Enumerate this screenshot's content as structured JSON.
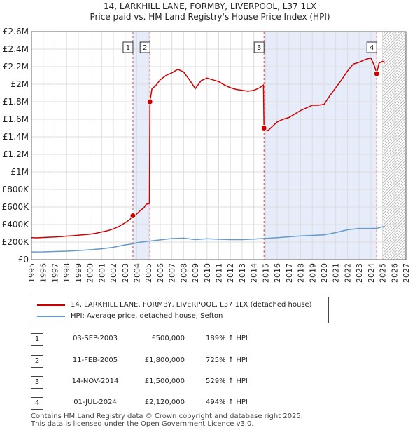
{
  "chart_data": {
    "type": "line",
    "title": "14, LARKHILL LANE, FORMBY, LIVERPOOL, L37 1LX",
    "subtitle": "Price paid vs. HM Land Registry's House Price Index (HPI)",
    "xlim": [
      1995,
      2027
    ],
    "ylim": [
      0,
      2600000
    ],
    "x_ticks": [
      1995,
      1996,
      1997,
      1998,
      1999,
      2000,
      2001,
      2002,
      2003,
      2004,
      2005,
      2006,
      2007,
      2008,
      2009,
      2010,
      2011,
      2012,
      2013,
      2014,
      2015,
      2016,
      2017,
      2018,
      2019,
      2020,
      2021,
      2022,
      2023,
      2024,
      2025,
      2026,
      2027
    ],
    "y_ticks": [
      {
        "value": 0,
        "label": "£0"
      },
      {
        "value": 200000,
        "label": "£200K"
      },
      {
        "value": 400000,
        "label": "£400K"
      },
      {
        "value": 600000,
        "label": "£600K"
      },
      {
        "value": 800000,
        "label": "£800K"
      },
      {
        "value": 1000000,
        "label": "£1M"
      },
      {
        "value": 1200000,
        "label": "£1.2M"
      },
      {
        "value": 1400000,
        "label": "£1.4M"
      },
      {
        "value": 1600000,
        "label": "£1.6M"
      },
      {
        "value": 1800000,
        "label": "£1.8M"
      },
      {
        "value": 2000000,
        "label": "£2M"
      },
      {
        "value": 2200000,
        "label": "£2.2M"
      },
      {
        "value": 2400000,
        "label": "£2.4M"
      },
      {
        "value": 2600000,
        "label": "£2.6M"
      }
    ],
    "grid": true,
    "forecast_start": 2025.0,
    "shaded_periods": [
      {
        "from": 2003.67,
        "to": 2005.12
      },
      {
        "from": 2014.87,
        "to": 2024.5
      }
    ],
    "series": [
      {
        "name": "14, LARKHILL LANE, FORMBY, LIVERPOOL, L37 1LX (detached house)",
        "color": "#cc0000",
        "points": [
          [
            1995.0,
            250000
          ],
          [
            1995.5,
            248000
          ],
          [
            1996.0,
            252000
          ],
          [
            1996.5,
            255000
          ],
          [
            1997.0,
            258000
          ],
          [
            1997.5,
            262000
          ],
          [
            1998.0,
            268000
          ],
          [
            1998.5,
            272000
          ],
          [
            1999.0,
            278000
          ],
          [
            1999.5,
            284000
          ],
          [
            2000.0,
            290000
          ],
          [
            2000.5,
            300000
          ],
          [
            2001.0,
            315000
          ],
          [
            2001.5,
            330000
          ],
          [
            2002.0,
            350000
          ],
          [
            2002.5,
            380000
          ],
          [
            2003.0,
            420000
          ],
          [
            2003.4,
            455000
          ],
          [
            2003.67,
            500000
          ],
          [
            2004.0,
            520000
          ],
          [
            2004.3,
            560000
          ],
          [
            2004.6,
            590000
          ],
          [
            2004.8,
            630000
          ],
          [
            2005.08,
            640000
          ],
          [
            2005.12,
            1800000
          ],
          [
            2005.3,
            1950000
          ],
          [
            2005.6,
            1980000
          ],
          [
            2006.0,
            2050000
          ],
          [
            2006.5,
            2100000
          ],
          [
            2007.0,
            2130000
          ],
          [
            2007.5,
            2170000
          ],
          [
            2008.0,
            2140000
          ],
          [
            2008.5,
            2050000
          ],
          [
            2009.0,
            1950000
          ],
          [
            2009.5,
            2040000
          ],
          [
            2010.0,
            2070000
          ],
          [
            2010.5,
            2050000
          ],
          [
            2011.0,
            2030000
          ],
          [
            2011.5,
            1990000
          ],
          [
            2012.0,
            1960000
          ],
          [
            2012.5,
            1940000
          ],
          [
            2013.0,
            1930000
          ],
          [
            2013.5,
            1920000
          ],
          [
            2014.0,
            1930000
          ],
          [
            2014.5,
            1960000
          ],
          [
            2014.82,
            1990000
          ],
          [
            2014.87,
            1500000
          ],
          [
            2015.2,
            1470000
          ],
          [
            2015.6,
            1520000
          ],
          [
            2016.0,
            1570000
          ],
          [
            2016.5,
            1600000
          ],
          [
            2017.0,
            1620000
          ],
          [
            2017.5,
            1660000
          ],
          [
            2018.0,
            1700000
          ],
          [
            2018.5,
            1730000
          ],
          [
            2019.0,
            1760000
          ],
          [
            2019.5,
            1760000
          ],
          [
            2020.0,
            1770000
          ],
          [
            2020.5,
            1870000
          ],
          [
            2021.0,
            1960000
          ],
          [
            2021.5,
            2050000
          ],
          [
            2022.0,
            2150000
          ],
          [
            2022.5,
            2230000
          ],
          [
            2023.0,
            2250000
          ],
          [
            2023.5,
            2280000
          ],
          [
            2024.0,
            2300000
          ],
          [
            2024.3,
            2210000
          ],
          [
            2024.5,
            2120000
          ],
          [
            2024.7,
            2240000
          ],
          [
            2025.0,
            2260000
          ],
          [
            2025.2,
            2250000
          ]
        ]
      },
      {
        "name": "HPI: Average price, detached house, Sefton",
        "color": "#6699cc",
        "points": [
          [
            1995.0,
            87000
          ],
          [
            1996.0,
            88000
          ],
          [
            1997.0,
            92000
          ],
          [
            1998.0,
            96000
          ],
          [
            1999.0,
            103000
          ],
          [
            2000.0,
            112000
          ],
          [
            2001.0,
            123000
          ],
          [
            2002.0,
            140000
          ],
          [
            2003.0,
            168000
          ],
          [
            2003.67,
            180000
          ],
          [
            2004.0,
            193000
          ],
          [
            2005.0,
            210000
          ],
          [
            2006.0,
            225000
          ],
          [
            2007.0,
            240000
          ],
          [
            2008.0,
            245000
          ],
          [
            2009.0,
            228000
          ],
          [
            2010.0,
            238000
          ],
          [
            2011.0,
            232000
          ],
          [
            2012.0,
            228000
          ],
          [
            2013.0,
            228000
          ],
          [
            2014.0,
            234000
          ],
          [
            2015.0,
            242000
          ],
          [
            2016.0,
            250000
          ],
          [
            2017.0,
            260000
          ],
          [
            2018.0,
            270000
          ],
          [
            2019.0,
            276000
          ],
          [
            2020.0,
            282000
          ],
          [
            2021.0,
            308000
          ],
          [
            2022.0,
            340000
          ],
          [
            2023.0,
            355000
          ],
          [
            2024.0,
            355000
          ],
          [
            2024.5,
            357000
          ],
          [
            2025.0,
            375000
          ],
          [
            2025.2,
            378000
          ]
        ]
      }
    ],
    "sales": [
      {
        "id": "1",
        "x": 2003.67,
        "value": 500000
      },
      {
        "id": "2",
        "x": 2005.12,
        "value": 1800000
      },
      {
        "id": "3",
        "x": 2014.87,
        "value": 1500000
      },
      {
        "id": "4",
        "x": 2024.5,
        "value": 2120000
      }
    ]
  },
  "legend": {
    "property_label": "14, LARKHILL LANE, FORMBY, LIVERPOOL, L37 1LX (detached house)",
    "hpi_label": "HPI: Average price, detached house, Sefton"
  },
  "transactions": [
    {
      "id": "1",
      "date": "03-SEP-2003",
      "price": "£500,000",
      "hpi": "189% ↑ HPI"
    },
    {
      "id": "2",
      "date": "11-FEB-2005",
      "price": "£1,800,000",
      "hpi": "725% ↑ HPI"
    },
    {
      "id": "3",
      "date": "14-NOV-2014",
      "price": "£1,500,000",
      "hpi": "529% ↑ HPI"
    },
    {
      "id": "4",
      "date": "01-JUL-2024",
      "price": "£2,120,000",
      "hpi": "494% ↑ HPI"
    }
  ],
  "footer": {
    "line1": "Contains HM Land Registry data © Crown copyright and database right 2025.",
    "line2": "This data is licensed under the Open Government Licence v3.0."
  }
}
